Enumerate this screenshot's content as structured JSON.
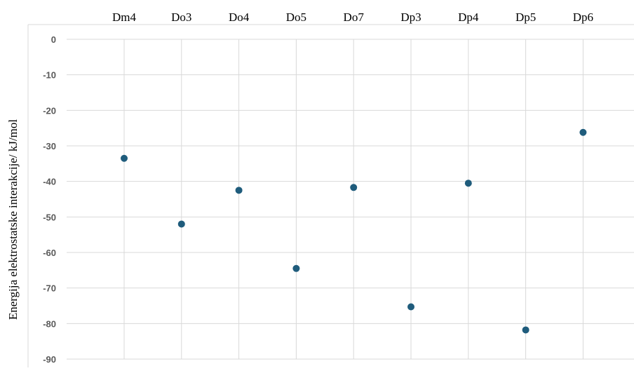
{
  "chart_data": {
    "type": "scatter",
    "categories": [
      "Dm4",
      "Do3",
      "Do4",
      "Do5",
      "Do7",
      "Dp3",
      "Dp4",
      "Dp5",
      "Dp6"
    ],
    "values": [
      -33.5,
      -52,
      -42.5,
      -64.5,
      -41.7,
      -75.3,
      -40.5,
      -81.8,
      -26.2
    ],
    "ylabel": "Energija elektrostatske interakcije/ kJ/mol",
    "xlabel": "",
    "title": "",
    "ylim": [
      -90,
      0
    ],
    "yticks": [
      0,
      -10,
      -20,
      -30,
      -40,
      -50,
      -60,
      -70,
      -80,
      -90
    ],
    "grid": true,
    "legend": "none",
    "marker_color": "#1f5c7c",
    "x_axis_position": "top"
  }
}
